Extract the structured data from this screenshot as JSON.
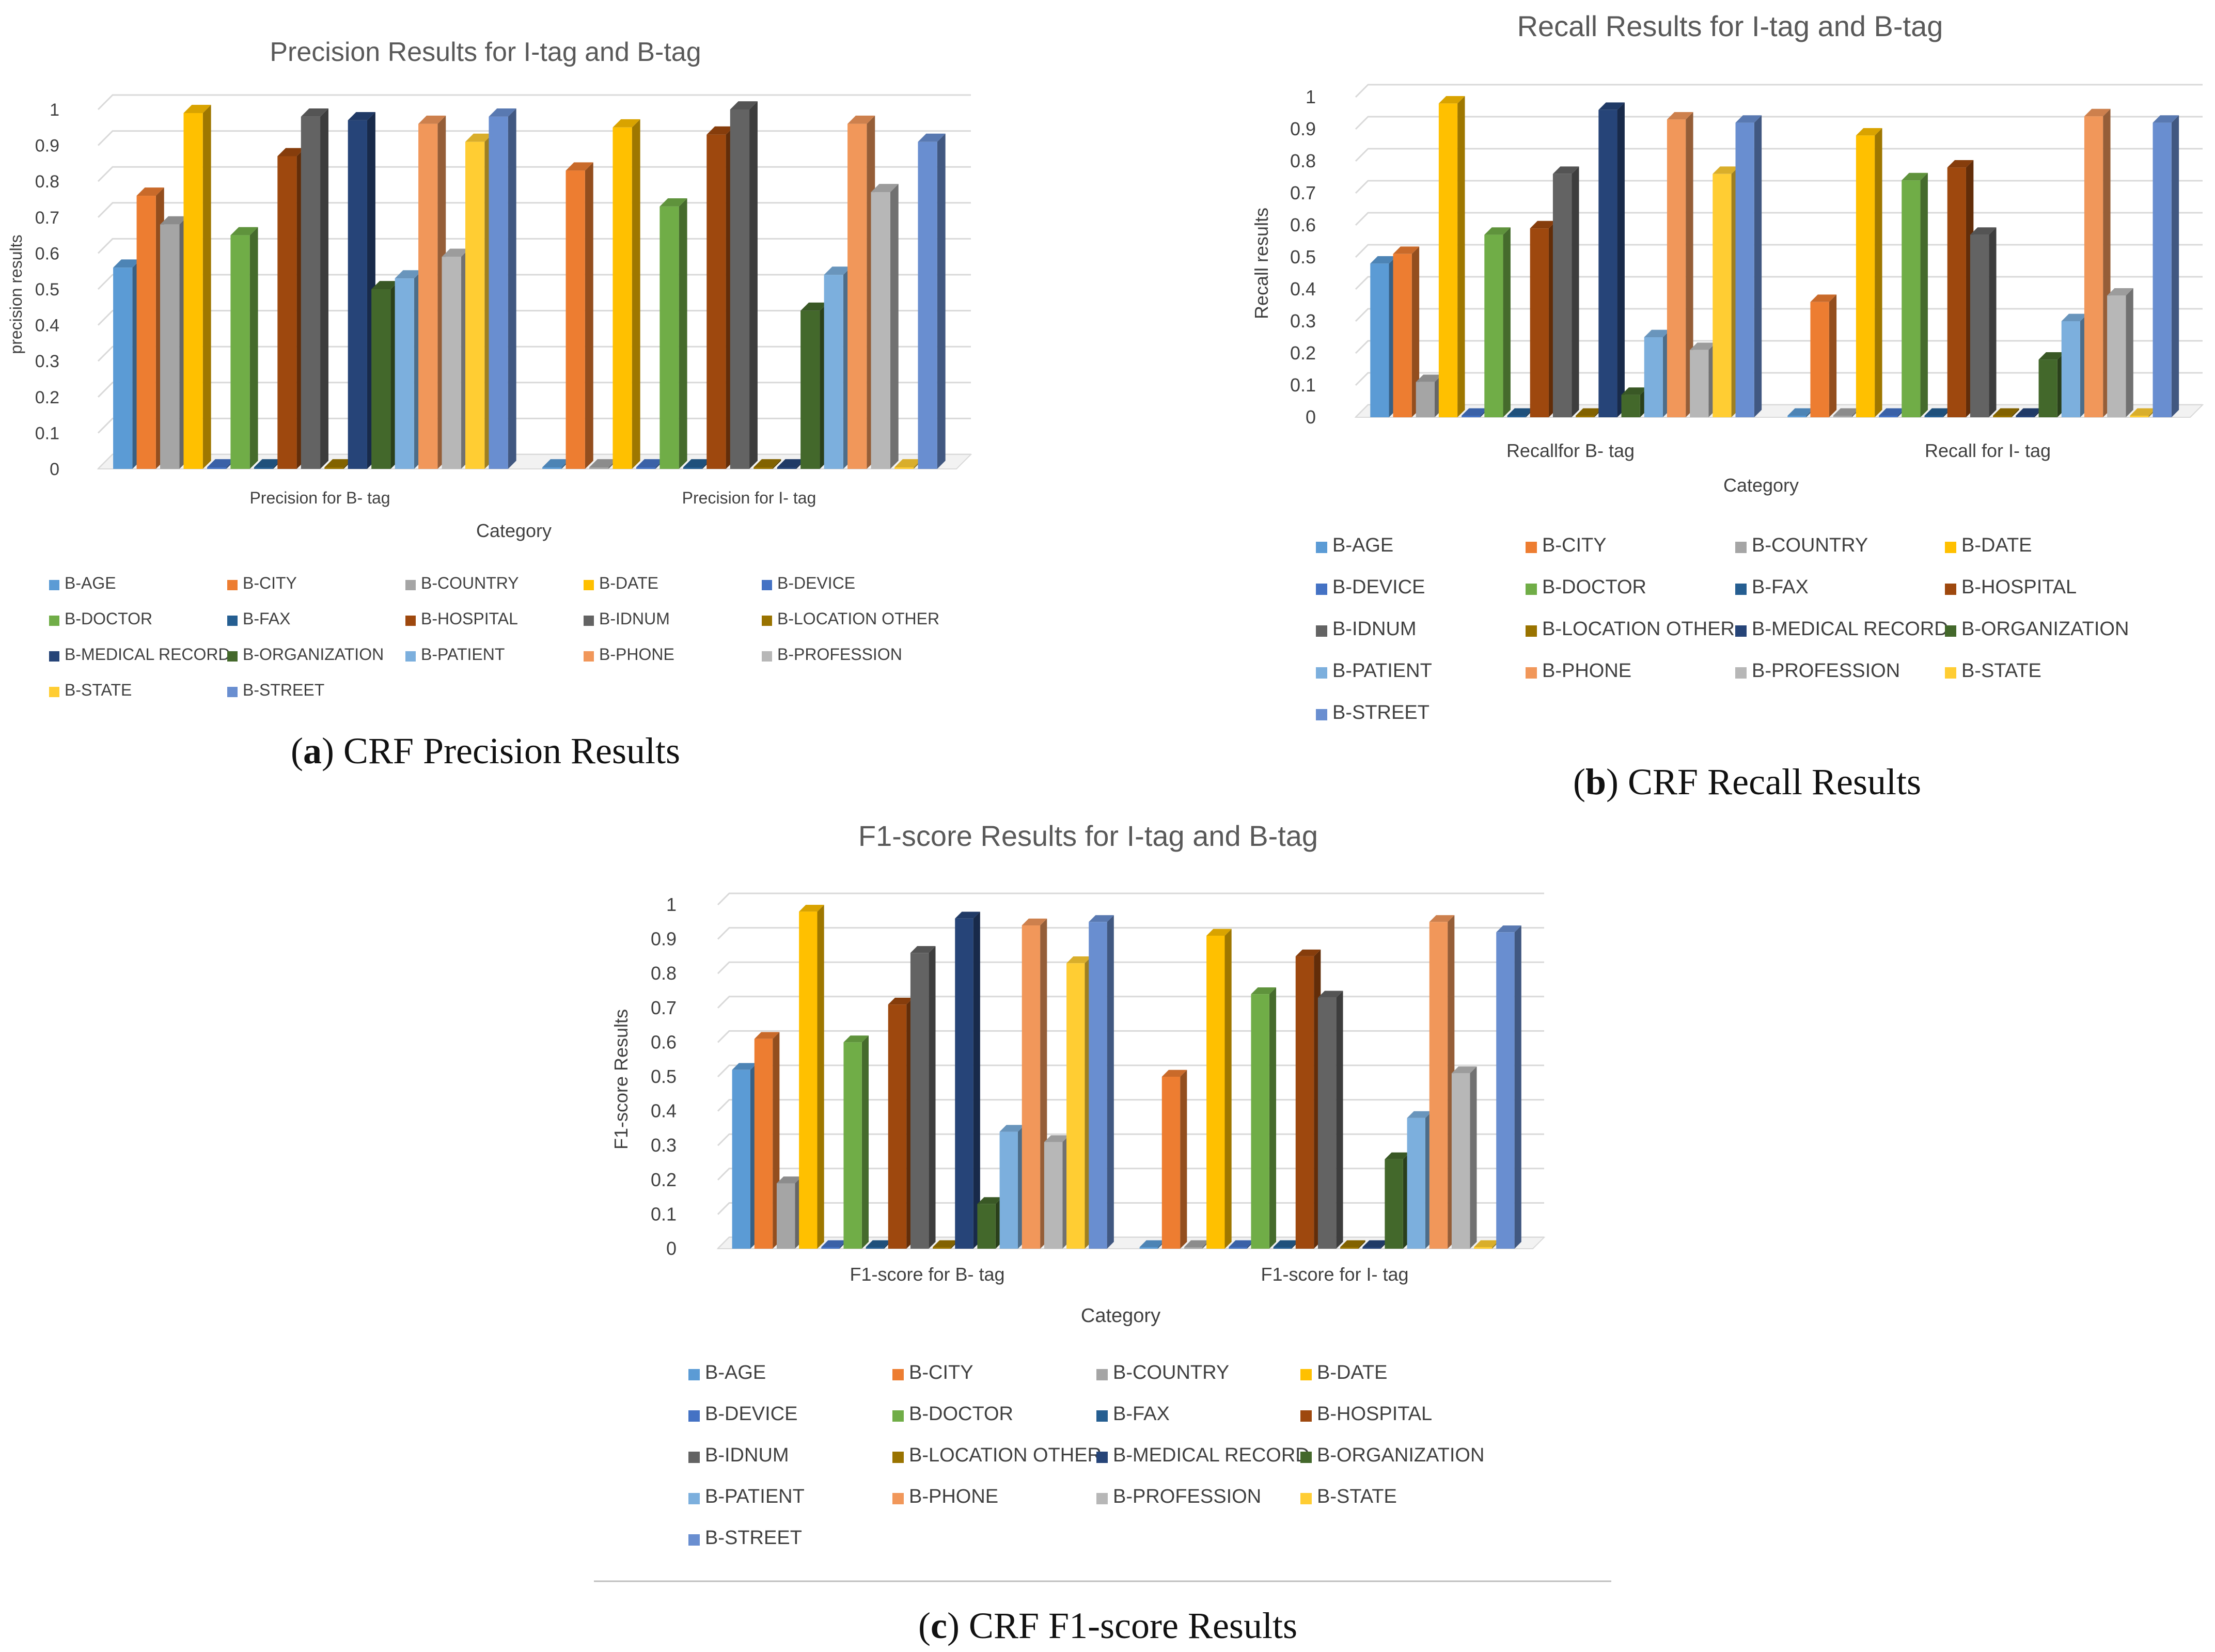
{
  "series_colors": {
    "B-AGE": "#5B9BD5",
    "B-CITY": "#ED7D31",
    "B-COUNTRY": "#A5A5A5",
    "B-DATE": "#FFC000",
    "B-DEVICE": "#4472C4",
    "B-DOCTOR": "#70AD47",
    "B-FAX": "#255E91",
    "B-HOSPITAL": "#9E480E",
    "B-IDNUM": "#636363",
    "B-LOCATION OTHER": "#997300",
    "B-MEDICAL RECORD": "#264478",
    "B-ORGANIZATION": "#43682B",
    "B-PATIENT": "#7CAFDD",
    "B-PHONE": "#F1975A",
    "B-PROFESSION": "#B7B7B7",
    "B-STATE": "#FFCD33",
    "B-STREET": "#698ED0"
  },
  "chart_data": [
    {
      "id": "a",
      "type": "bar",
      "title": "Precision Results for  I-tag and B-tag",
      "xlabel": "Category",
      "ylabel": "precision results",
      "ylim": [
        0,
        1
      ],
      "yticks": [
        "0",
        "0.1",
        "0.2",
        "0.3",
        "0.4",
        "0.5",
        "0.6",
        "0.7",
        "0.8",
        "0.9",
        "1"
      ],
      "categories": [
        "Precision for B- tag",
        "Precision for I- tag"
      ],
      "series": [
        {
          "name": "B-AGE",
          "values": [
            0.56,
            0
          ]
        },
        {
          "name": "B-CITY",
          "values": [
            0.76,
            0.83
          ]
        },
        {
          "name": "B-COUNTRY",
          "values": [
            0.68,
            0
          ]
        },
        {
          "name": "B-DATE",
          "values": [
            0.99,
            0.95
          ]
        },
        {
          "name": "B-DEVICE",
          "values": [
            0,
            0
          ]
        },
        {
          "name": "B-DOCTOR",
          "values": [
            0.65,
            0.73
          ]
        },
        {
          "name": "B-FAX",
          "values": [
            0,
            0
          ]
        },
        {
          "name": "B-HOSPITAL",
          "values": [
            0.87,
            0.93
          ]
        },
        {
          "name": "B-IDNUM",
          "values": [
            0.98,
            1.0
          ]
        },
        {
          "name": "B-LOCATION OTHER",
          "values": [
            0,
            0
          ]
        },
        {
          "name": "B-MEDICAL RECORD",
          "values": [
            0.97,
            0
          ]
        },
        {
          "name": "B-ORGANIZATION",
          "values": [
            0.5,
            0.44
          ]
        },
        {
          "name": "B-PATIENT",
          "values": [
            0.53,
            0.54
          ]
        },
        {
          "name": "B-PHONE",
          "values": [
            0.96,
            0.96
          ]
        },
        {
          "name": "B-PROFESSION",
          "values": [
            0.59,
            0.77
          ]
        },
        {
          "name": "B-STATE",
          "values": [
            0.91,
            0
          ]
        },
        {
          "name": "B-STREET",
          "values": [
            0.98,
            0.91
          ]
        }
      ],
      "caption_label": "a",
      "caption_text": ") CRF Precision Results"
    },
    {
      "id": "b",
      "type": "bar",
      "title": "Recall Results for  I-tag and B-tag",
      "xlabel": "Category",
      "ylabel": "Recall results",
      "ylim": [
        0,
        1
      ],
      "yticks": [
        "0",
        "0.1",
        "0.2",
        "0.3",
        "0.4",
        "0.5",
        "0.6",
        "0.7",
        "0.8",
        "0.9",
        "1"
      ],
      "categories": [
        "Recallfor B- tag",
        "Recall for I- tag"
      ],
      "series": [
        {
          "name": "B-AGE",
          "values": [
            0.48,
            0
          ]
        },
        {
          "name": "B-CITY",
          "values": [
            0.51,
            0.36
          ]
        },
        {
          "name": "B-COUNTRY",
          "values": [
            0.11,
            0
          ]
        },
        {
          "name": "B-DATE",
          "values": [
            0.98,
            0.88
          ]
        },
        {
          "name": "B-DEVICE",
          "values": [
            0,
            0
          ]
        },
        {
          "name": "B-DOCTOR",
          "values": [
            0.57,
            0.74
          ]
        },
        {
          "name": "B-FAX",
          "values": [
            0,
            0
          ]
        },
        {
          "name": "B-HOSPITAL",
          "values": [
            0.59,
            0.78
          ]
        },
        {
          "name": "B-IDNUM",
          "values": [
            0.76,
            0.57
          ]
        },
        {
          "name": "B-LOCATION OTHER",
          "values": [
            0,
            0
          ]
        },
        {
          "name": "B-MEDICAL RECORD",
          "values": [
            0.96,
            0
          ]
        },
        {
          "name": "B-ORGANIZATION",
          "values": [
            0.07,
            0.18
          ]
        },
        {
          "name": "B-PATIENT",
          "values": [
            0.25,
            0.3
          ]
        },
        {
          "name": "B-PHONE",
          "values": [
            0.93,
            0.94
          ]
        },
        {
          "name": "B-PROFESSION",
          "values": [
            0.21,
            0.38
          ]
        },
        {
          "name": "B-STATE",
          "values": [
            0.76,
            0
          ]
        },
        {
          "name": "B-STREET",
          "values": [
            0.92,
            0.92
          ]
        }
      ],
      "caption_label": "b",
      "caption_text": ") CRF Recall Results"
    },
    {
      "id": "c",
      "type": "bar",
      "title": "F1-score Results for  I-tag and B-tag",
      "xlabel": "Category",
      "ylabel": "F1-score Results",
      "ylim": [
        0,
        1
      ],
      "yticks": [
        "0",
        "0.1",
        "0.2",
        "0.3",
        "0.4",
        "0.5",
        "0.6",
        "0.7",
        "0.8",
        "0.9",
        "1"
      ],
      "categories": [
        "F1-score for B- tag",
        "F1-score for I- tag"
      ],
      "series": [
        {
          "name": "B-AGE",
          "values": [
            0.52,
            0
          ]
        },
        {
          "name": "B-CITY",
          "values": [
            0.61,
            0.5
          ]
        },
        {
          "name": "B-COUNTRY",
          "values": [
            0.19,
            0
          ]
        },
        {
          "name": "B-DATE",
          "values": [
            0.98,
            0.91
          ]
        },
        {
          "name": "B-DEVICE",
          "values": [
            0,
            0
          ]
        },
        {
          "name": "B-DOCTOR",
          "values": [
            0.6,
            0.74
          ]
        },
        {
          "name": "B-FAX",
          "values": [
            0,
            0
          ]
        },
        {
          "name": "B-HOSPITAL",
          "values": [
            0.71,
            0.85
          ]
        },
        {
          "name": "B-IDNUM",
          "values": [
            0.86,
            0.73
          ]
        },
        {
          "name": "B-LOCATION OTHER",
          "values": [
            0,
            0
          ]
        },
        {
          "name": "B-MEDICAL RECORD",
          "values": [
            0.96,
            0
          ]
        },
        {
          "name": "B-ORGANIZATION",
          "values": [
            0.13,
            0.26
          ]
        },
        {
          "name": "B-PATIENT",
          "values": [
            0.34,
            0.38
          ]
        },
        {
          "name": "B-PHONE",
          "values": [
            0.94,
            0.95
          ]
        },
        {
          "name": "B-PROFESSION",
          "values": [
            0.31,
            0.51
          ]
        },
        {
          "name": "B-STATE",
          "values": [
            0.83,
            0
          ]
        },
        {
          "name": "B-STREET",
          "values": [
            0.95,
            0.92
          ]
        }
      ],
      "caption_label": "c",
      "caption_text": ") CRF F1-score Results"
    }
  ]
}
